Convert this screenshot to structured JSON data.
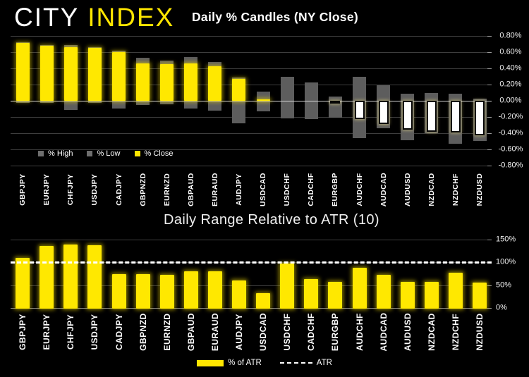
{
  "logo": {
    "city": "CITY",
    "index": "INDEX"
  },
  "top_chart": {
    "title": "Daily % Candles (NY Close)",
    "legend": [
      {
        "label": "% High",
        "color": "#6e6e6e"
      },
      {
        "label": "% Low",
        "color": "#6e6e6e"
      },
      {
        "label": "% Close",
        "color": "#ffe600"
      }
    ]
  },
  "bottom_chart": {
    "title": "Daily Range Relative to ATR (10)",
    "legend": [
      {
        "label": "% of ATR",
        "color": "#ffe600"
      },
      {
        "label": "ATR",
        "style": "dashed-white-line"
      }
    ]
  },
  "colors": {
    "background": "#000000",
    "accent_yellow": "#ffe800",
    "high_low_gray": "#5d5d5d",
    "negative_close_fill": "#ffffff",
    "grid": "#3d3d3d",
    "zero_line": "#d8d8d8",
    "atr_reference": "#ffffff"
  },
  "chart_data": [
    {
      "type": "bar",
      "title": "Daily % Candles (NY Close)",
      "categories": [
        "GBPJPY",
        "EURJPY",
        "CHFJPY",
        "USDJPY",
        "CADJPY",
        "GBPNZD",
        "EURNZD",
        "GBPAUD",
        "EURAUD",
        "AUDJPY",
        "USDCAD",
        "USDCHF",
        "CADCHF",
        "EURGBP",
        "AUDCHF",
        "AUDCAD",
        "AUDUSD",
        "NZDCAD",
        "NZDCHF",
        "NZDUSD"
      ],
      "series": [
        {
          "name": "% High",
          "values": [
            0.72,
            0.69,
            0.69,
            0.66,
            0.62,
            0.53,
            0.5,
            0.54,
            0.48,
            0.29,
            0.11,
            0.3,
            0.23,
            0.05,
            0.3,
            0.19,
            0.09,
            0.1,
            0.09,
            0.03
          ]
        },
        {
          "name": "% Low",
          "values": [
            -0.03,
            -0.03,
            -0.11,
            -0.03,
            -0.1,
            -0.05,
            -0.04,
            -0.1,
            -0.12,
            -0.28,
            -0.13,
            -0.22,
            -0.23,
            -0.21,
            -0.46,
            -0.34,
            -0.49,
            -0.4,
            -0.53,
            -0.5
          ]
        },
        {
          "name": "% Close",
          "values": [
            0.71,
            0.68,
            0.66,
            0.65,
            0.6,
            0.46,
            0.45,
            0.46,
            0.43,
            0.27,
            0.01,
            0.0,
            0.0,
            -0.03,
            -0.23,
            -0.29,
            -0.36,
            -0.38,
            -0.39,
            -0.43
          ]
        }
      ],
      "ylim": [
        -0.8,
        0.8
      ],
      "y_tick_values": [
        0.8,
        0.6,
        0.4,
        0.2,
        0,
        -0.2,
        -0.4,
        -0.6,
        -0.8
      ],
      "y_tick_labels": [
        "0.80%",
        "0.60%",
        "0.40%",
        "0.20%",
        "0.00%",
        "-0.20%",
        "-0.40%",
        "-0.60%",
        "-0.80%"
      ],
      "grid": true,
      "legend_position": "inside-bottom-left",
      "y_axis_side": "right"
    },
    {
      "type": "bar",
      "title": "Daily Range Relative to ATR (10)",
      "categories": [
        "GBPJPY",
        "EURJPY",
        "CHFJPY",
        "USDJPY",
        "CADJPY",
        "GBPNZD",
        "EURNZD",
        "GBPAUD",
        "EURAUD",
        "AUDJPY",
        "USDCAD",
        "USDCHF",
        "CADCHF",
        "EURGBP",
        "AUDCHF",
        "AUDCAD",
        "AUDUSD",
        "NZDCAD",
        "NZDCHF",
        "NZDUSD"
      ],
      "series": [
        {
          "name": "% of ATR",
          "values": [
            110,
            136,
            139,
            137,
            75,
            75,
            72,
            80,
            81,
            61,
            33,
            98,
            64,
            58,
            88,
            73,
            58,
            57,
            78,
            56
          ]
        }
      ],
      "reference_line": {
        "name": "ATR",
        "value": 100,
        "style": "dashed"
      },
      "ylim": [
        0,
        150
      ],
      "y_tick_values": [
        150,
        100,
        50,
        0
      ],
      "y_tick_labels": [
        "150%",
        "100%",
        "50%",
        "0%"
      ],
      "grid": true,
      "legend_position": "below-center",
      "y_axis_side": "right"
    }
  ]
}
